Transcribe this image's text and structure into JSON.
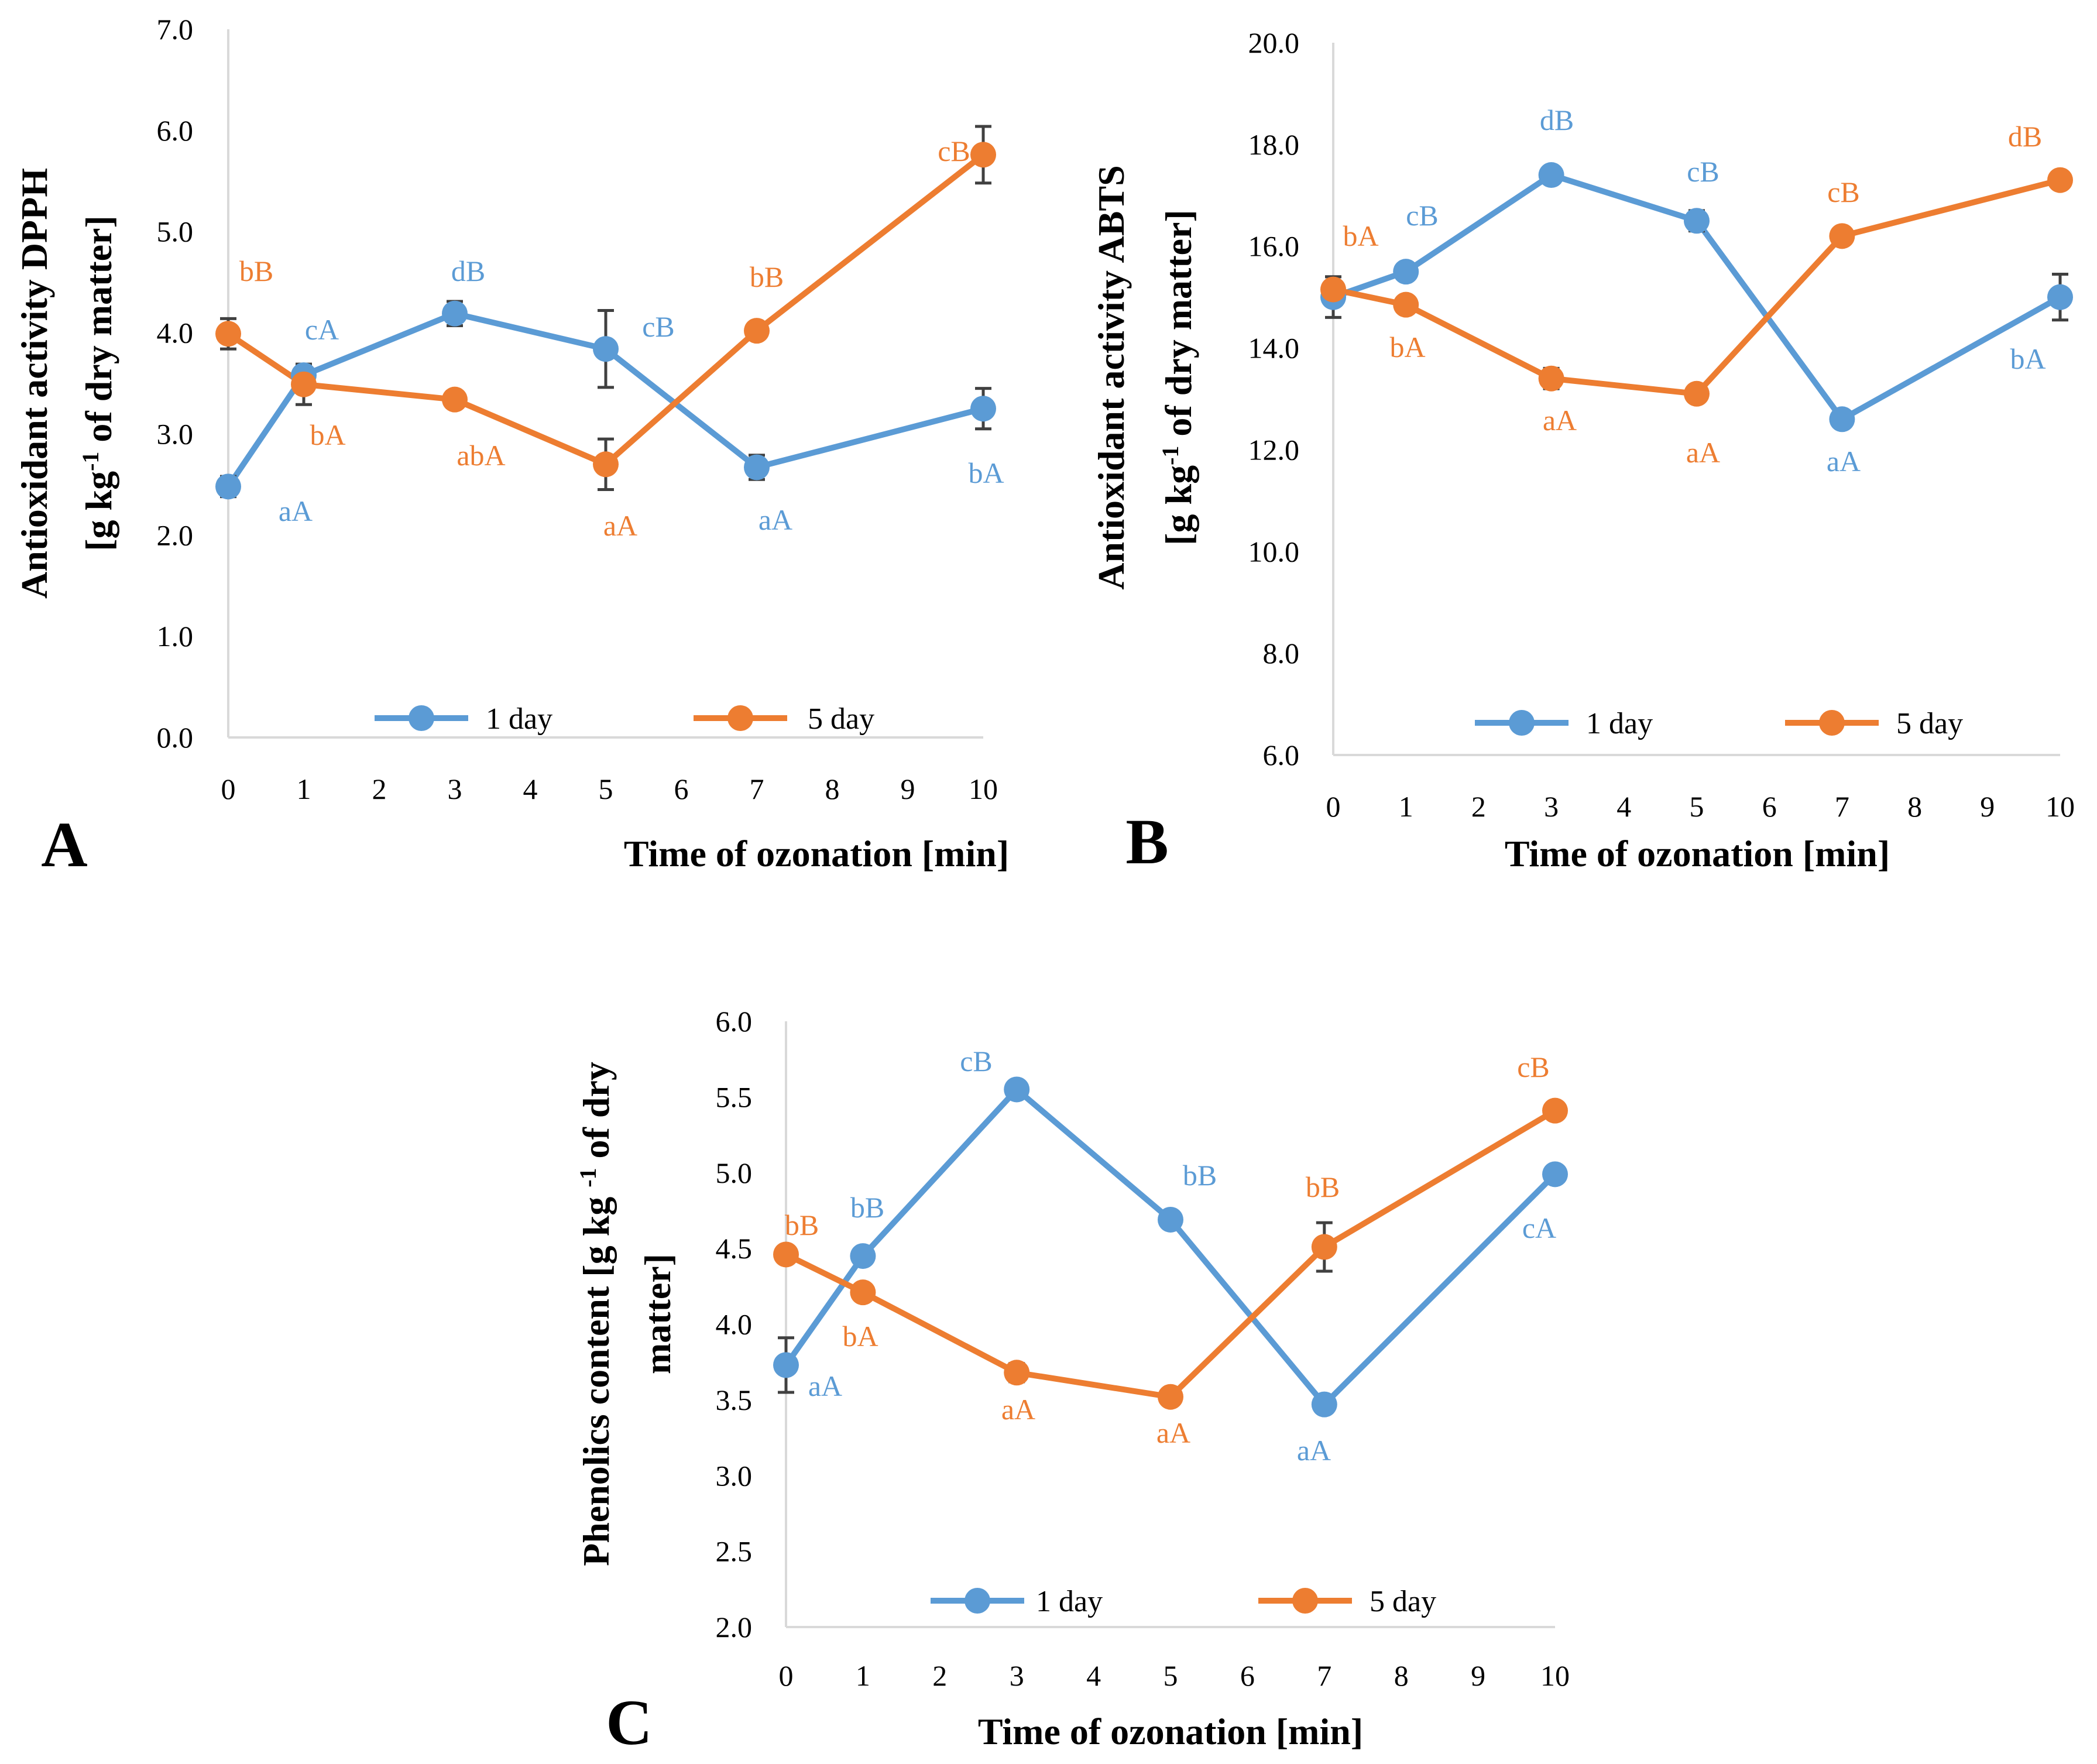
{
  "colors": {
    "day1": "#5B9BD5",
    "day5": "#ED7D31",
    "axis": "#D9D9D9",
    "errorbar": "#404040"
  },
  "chart_data": [
    {
      "panel": "A",
      "type": "line",
      "x": [
        0,
        1,
        3,
        5,
        7,
        10
      ],
      "x_ticks": [
        "0",
        "1",
        "2",
        "3",
        "4",
        "5",
        "6",
        "7",
        "8",
        "9",
        "10"
      ],
      "xlim": [
        0,
        10
      ],
      "ylim": [
        0,
        7
      ],
      "y_ticks": [
        "0.0",
        "1.0",
        "2.0",
        "3.0",
        "4.0",
        "5.0",
        "6.0",
        "7.0"
      ],
      "xlabel": "Time of ozonation [min]",
      "ylabel_line1": "Antioxidant activity DPPH",
      "ylabel_line2_pre": "[g kg",
      "ylabel_line2_sup": "-1",
      "ylabel_line2_post": " of dry matter]",
      "legend_position": "bottom",
      "series": [
        {
          "name": "1 day",
          "values": [
            2.48,
            3.58,
            4.19,
            3.84,
            2.67,
            3.25
          ],
          "errors": [
            0.1,
            0.1,
            0.12,
            0.38,
            0.12,
            0.2
          ],
          "labels": [
            "aA",
            "cA",
            "dB",
            "cB",
            "aA",
            "bA"
          ]
        },
        {
          "name": "5 day",
          "values": [
            3.99,
            3.49,
            3.34,
            2.7,
            4.02,
            5.76
          ],
          "errors": [
            0.15,
            0.2,
            0.05,
            0.25,
            0.05,
            0.28
          ],
          "labels": [
            "bB",
            "bA",
            "abA",
            "aA",
            "bB",
            "cB"
          ]
        }
      ]
    },
    {
      "panel": "B",
      "type": "line",
      "x": [
        0,
        1,
        3,
        5,
        7,
        10
      ],
      "x_ticks": [
        "0",
        "1",
        "2",
        "3",
        "4",
        "5",
        "6",
        "7",
        "8",
        "9",
        "10"
      ],
      "xlim": [
        0,
        10
      ],
      "ylim": [
        6,
        20
      ],
      "y_ticks": [
        "6.0",
        "8.0",
        "10.0",
        "12.0",
        "14.0",
        "16.0",
        "18.0",
        "20.0"
      ],
      "xlabel": "Time of ozonation [min]",
      "ylabel_line1": "Antioxidant activity ABTS",
      "ylabel_line2_pre": "[g kg",
      "ylabel_line2_sup": "-1",
      "ylabel_line2_post": " of dry matter]",
      "legend_position": "bottom",
      "series": [
        {
          "name": "1 day",
          "values": [
            15.0,
            15.5,
            17.4,
            16.5,
            12.6,
            15.0
          ],
          "errors": [
            0.4,
            0.15,
            0.1,
            0.2,
            0.1,
            0.45
          ],
          "labels": [
            "",
            "cB",
            "dB",
            "cB",
            "aA",
            "bA"
          ]
        },
        {
          "name": "5 day",
          "values": [
            15.15,
            14.85,
            13.4,
            13.1,
            16.2,
            17.3
          ],
          "errors": [
            0.25,
            0.1,
            0.2,
            0.15,
            0.1,
            0.1
          ],
          "labels": [
            "bA",
            "bA",
            "aA",
            "aA",
            "cB",
            "dB"
          ]
        }
      ]
    },
    {
      "panel": "C",
      "type": "line",
      "x": [
        0,
        1,
        3,
        5,
        7,
        10
      ],
      "x_ticks": [
        "0",
        "1",
        "2",
        "3",
        "4",
        "5",
        "6",
        "7",
        "8",
        "9",
        "10"
      ],
      "xlim": [
        0,
        10
      ],
      "ylim": [
        2,
        6
      ],
      "y_ticks": [
        "2.0",
        "2.5",
        "3.0",
        "3.5",
        "4.0",
        "4.5",
        "5.0",
        "5.5",
        "6.0"
      ],
      "xlabel": "Time of ozonation [min]",
      "ylabel_line1_pre": "Phenolics content [g kg ",
      "ylabel_line1_sup": "-1",
      "ylabel_line1_post": " of dry",
      "ylabel_line2": "matter]",
      "legend_position": "bottom",
      "series": [
        {
          "name": "1 day",
          "values": [
            3.73,
            4.45,
            5.55,
            4.69,
            3.47,
            4.99
          ],
          "errors": [
            0.18,
            0.03,
            0.03,
            0.03,
            0.03,
            0.03
          ],
          "labels": [
            "aA",
            "bB",
            "cB",
            "bB",
            "aA",
            "cA"
          ]
        },
        {
          "name": "5 day",
          "values": [
            4.46,
            4.21,
            3.68,
            3.52,
            4.51,
            5.41
          ],
          "errors": [
            0.03,
            0.03,
            0.06,
            0.03,
            0.16,
            0.03
          ],
          "labels": [
            "bB",
            "bA",
            "aA",
            "aA",
            "bB",
            "cB"
          ]
        }
      ]
    }
  ]
}
